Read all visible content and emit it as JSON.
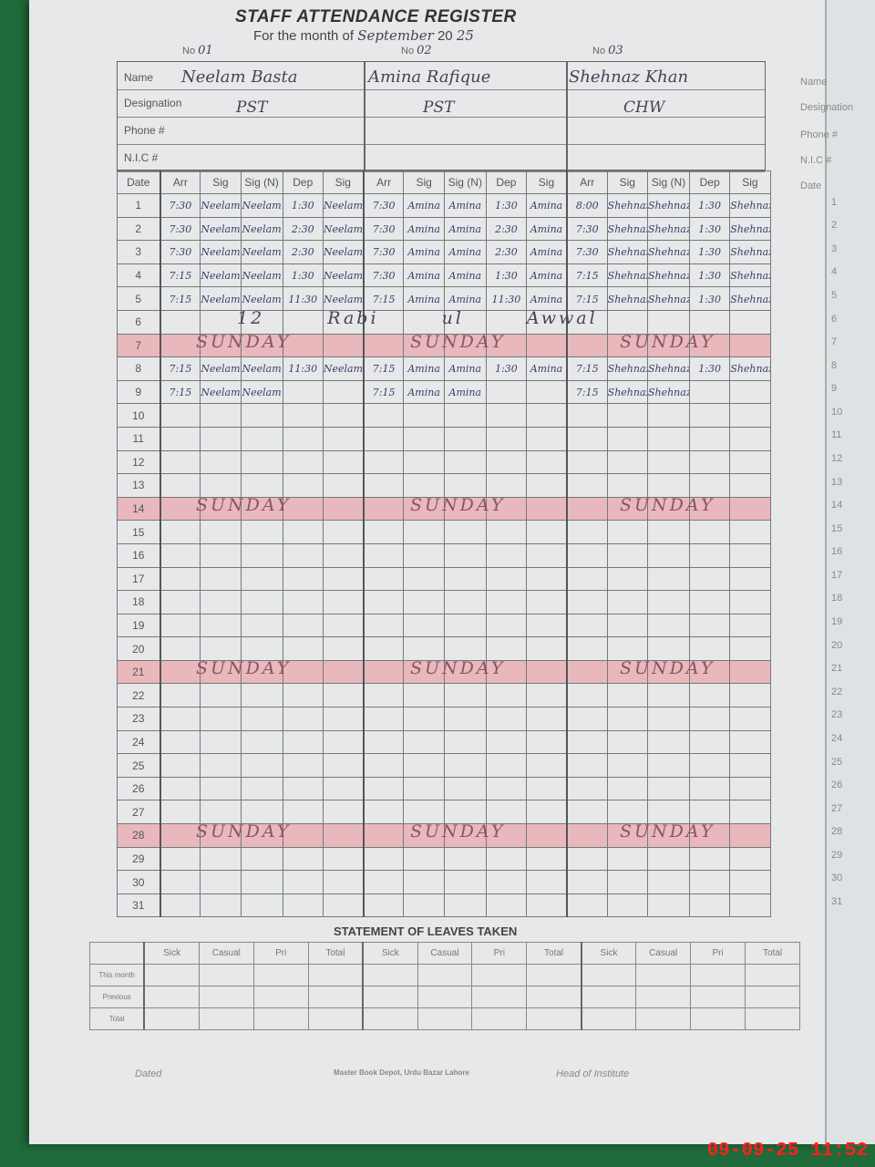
{
  "register": {
    "title": "STAFF ATTENDANCE REGISTER",
    "month_label": "For the month of",
    "month_value": "September",
    "year_label": "20",
    "year_value": "25",
    "no_label": "No",
    "field_labels": {
      "name": "Name",
      "designation": "Designation",
      "phone": "Phone #",
      "nic": "N.I.C #"
    },
    "column_headers": {
      "date": "Date",
      "cols": [
        "Arr",
        "Sig",
        "Sig (N)",
        "Dep",
        "Sig"
      ]
    },
    "staff": [
      {
        "no": "01",
        "name": "Neelam Basta",
        "designation": "PST",
        "sig": "Neelam"
      },
      {
        "no": "02",
        "name": "Amina Rafique",
        "designation": "PST",
        "sig": "Amina"
      },
      {
        "no": "03",
        "name": "Shehnaz Khan",
        "designation": "CHW",
        "sig": "Shehnaz"
      }
    ],
    "attendance": {
      "1": [
        [
          "7:30",
          "1:30"
        ],
        [
          "7:30",
          "1:30"
        ],
        [
          "8:00",
          "1:30"
        ]
      ],
      "2": [
        [
          "7:30",
          "2:30"
        ],
        [
          "7:30",
          "2:30"
        ],
        [
          "7:30",
          "1:30"
        ]
      ],
      "3": [
        [
          "7:30",
          "2:30"
        ],
        [
          "7:30",
          "2:30"
        ],
        [
          "7:30",
          "1:30"
        ]
      ],
      "4": [
        [
          "7:15",
          "1:30"
        ],
        [
          "7:30",
          "1:30"
        ],
        [
          "7:15",
          "1:30"
        ]
      ],
      "5": [
        [
          "7:15",
          "11:30"
        ],
        [
          "7:15",
          "11:30"
        ],
        [
          "7:15",
          "1:30"
        ]
      ],
      "8": [
        [
          "7:15",
          "11:30"
        ],
        [
          "7:15",
          "1:30"
        ],
        [
          "7:15",
          "1:30"
        ]
      ],
      "9": [
        [
          "7:15",
          ""
        ],
        [
          "7:15",
          ""
        ],
        [
          "7:15",
          ""
        ]
      ]
    },
    "holiday_row": {
      "day": 6,
      "text": "12 Rabi ul Awwal"
    },
    "sunday_days": [
      7,
      14,
      21,
      28
    ],
    "sunday_text": "SUNDAY",
    "days_in_month": 31
  },
  "leaves": {
    "title": "STATEMENT OF LEAVES TAKEN",
    "headers": [
      "Sick",
      "Casual",
      "Pri",
      "Total"
    ],
    "rows": [
      "This month",
      "Previous",
      "Total"
    ]
  },
  "footer": {
    "dated": "Dated",
    "publisher": "Master Book Depot, Urdu Bazar Lahore",
    "head": "Head of Institute"
  },
  "right_page": {
    "labels": [
      "Name",
      "Designation",
      "Phone #",
      "N.I.C #",
      "Date"
    ]
  },
  "timestamp": "09-09-25  11:52",
  "colors": {
    "sunday_band": "#e8b8bd",
    "timestamp": "#ff2020",
    "background": "#1f6b3a"
  }
}
